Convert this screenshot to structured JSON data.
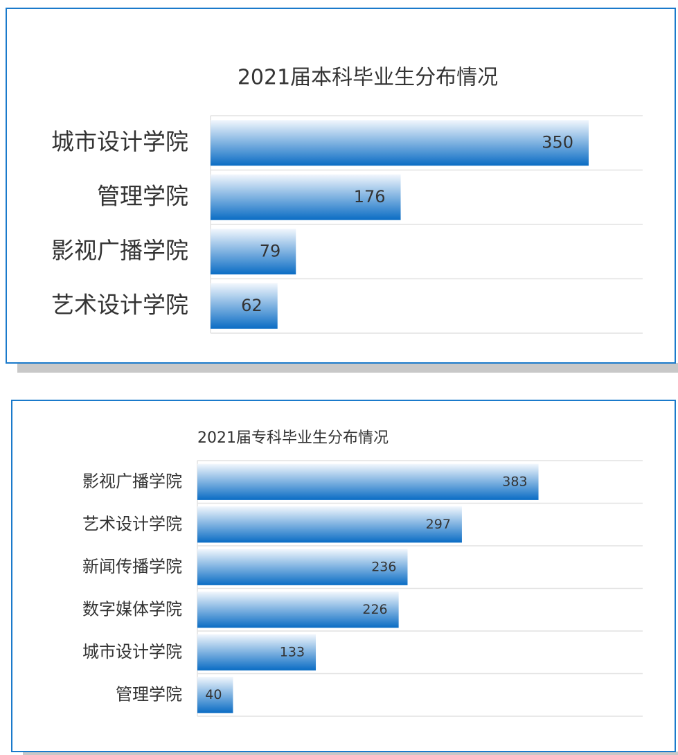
{
  "chart_data": [
    {
      "type": "bar",
      "orientation": "horizontal",
      "title": "2021届本科毕业生分布情况",
      "categories": [
        "城市设计学院",
        "管理学院",
        "影视广播学院",
        "艺术设计学院"
      ],
      "values": [
        350,
        176,
        79,
        62
      ],
      "color": "#0a6cc4",
      "xlim": [
        0,
        400
      ]
    },
    {
      "type": "bar",
      "orientation": "horizontal",
      "title": "2021届专科毕业生分布情况",
      "categories": [
        "影视广播学院",
        "艺术设计学院",
        "新闻传播学院",
        "数字媒体学院",
        "城市设计学院",
        "管理学院"
      ],
      "values": [
        383,
        297,
        236,
        226,
        133,
        40
      ],
      "color": "#0a6cc4",
      "xlim": [
        0,
        500
      ]
    }
  ]
}
